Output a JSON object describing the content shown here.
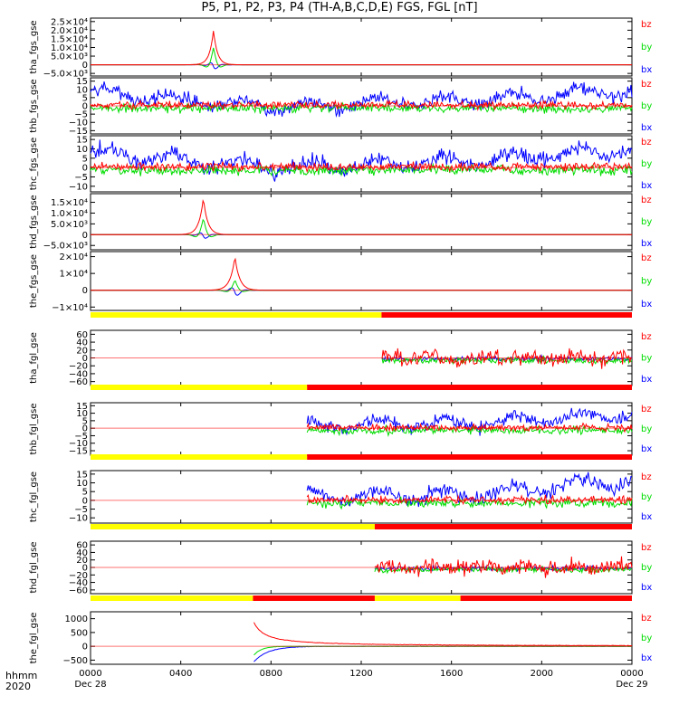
{
  "title": "P5, P1, P2, P3, P4 (TH-A,B,C,D,E) FGS, FGL [nT]",
  "corner_labels": [
    "hhmm",
    "2020"
  ],
  "colors": {
    "bx": "#0000ff",
    "by": "#00dd00",
    "bz": "#ff0000",
    "flag_on": "#ff0000",
    "flag_off": "#ffff00"
  },
  "chart_data": {
    "type": "line",
    "x_axis": {
      "range_hours": [
        0,
        24
      ],
      "tick_hours": [
        0,
        4,
        8,
        12,
        16,
        20,
        24
      ],
      "tick_labels": [
        "0000",
        "0400",
        "0800",
        "1200",
        "1600",
        "2000",
        "0000"
      ],
      "date_labels": [
        {
          "hour": 0,
          "text": "Dec 28"
        },
        {
          "hour": 24,
          "text": "Dec 29"
        }
      ]
    },
    "series_names": [
      "bz",
      "by",
      "bx"
    ],
    "panels": [
      {
        "ylabel": "tha_fgs_gse",
        "ylim": [
          -6500,
          27000
        ],
        "ticks": [
          25000,
          20000,
          15000,
          10000,
          5000,
          0,
          -5000
        ],
        "tick_labels": [
          "2.5×10⁴",
          "2.0×10⁴",
          "1.5×10⁴",
          "1.0×10⁴",
          "5.0×10³",
          "0",
          "−5.0×10³"
        ],
        "kind": "spike",
        "spike": {
          "center_h": 5.45,
          "width_h": 0.38,
          "bz": 20000,
          "by": 10000,
          "bx": -3500
        }
      },
      {
        "ylabel": "thb_fgs_gse",
        "ylim": [
          -17,
          17
        ],
        "ticks": [
          15,
          10,
          5,
          0,
          -5,
          -10,
          -15
        ],
        "tick_labels": [
          "15",
          "10",
          "5",
          "0",
          "−5",
          "−10",
          "−15"
        ],
        "kind": "noise",
        "start_h": 0,
        "bx_trend": [
          8,
          0,
          3,
          9
        ]
      },
      {
        "ylabel": "thc_fgs_gse",
        "ylim": [
          -13,
          17
        ],
        "ticks": [
          15,
          10,
          5,
          0,
          -5,
          -10
        ],
        "tick_labels": [
          "15",
          "10",
          "5",
          "0",
          "−5",
          "−10"
        ],
        "kind": "noise",
        "start_h": 0,
        "bx_trend": [
          8,
          0,
          3,
          10
        ]
      },
      {
        "ylabel": "thd_fgs_gse",
        "ylim": [
          -7000,
          19000
        ],
        "ticks": [
          15000,
          10000,
          5000,
          0,
          -5000
        ],
        "tick_labels": [
          "1.5×10⁴",
          "1.0×10⁴",
          "5.0×10³",
          "0",
          "−5.0×10³"
        ],
        "kind": "spike",
        "spike": {
          "center_h": 5.0,
          "width_h": 0.42,
          "bz": 17000,
          "by": 7500,
          "bx": -2500
        }
      },
      {
        "ylabel": "the_fgs_gse",
        "ylim": [
          -12000,
          23000
        ],
        "ticks": [
          20000,
          10000,
          0,
          -10000
        ],
        "tick_labels": [
          "2×10⁴",
          "1×10⁴",
          "0",
          "−1×10⁴"
        ],
        "kind": "spike",
        "spike": {
          "center_h": 6.4,
          "width_h": 0.45,
          "bz": 20000,
          "by": 6000,
          "bx": -4500
        }
      },
      {
        "ylabel": "tha_fgl_gse",
        "ylim": [
          -70,
          70
        ],
        "ticks": [
          60,
          40,
          20,
          0,
          -20,
          -40,
          -60
        ],
        "tick_labels": [
          "60",
          "40",
          "20",
          "0",
          "−20",
          "−40",
          "−60"
        ],
        "kind": "noise",
        "start_h": 12.9,
        "amp": 40,
        "flags": [
          {
            "from_h": 0,
            "to_h": 12.9,
            "on": false
          },
          {
            "from_h": 12.9,
            "to_h": 24,
            "on": true
          }
        ]
      },
      {
        "ylabel": "thb_fgl_gse",
        "ylim": [
          -18,
          17
        ],
        "ticks": [
          15,
          10,
          5,
          0,
          -5,
          -10,
          -15
        ],
        "tick_labels": [
          "15",
          "10",
          "5",
          "0",
          "−5",
          "−10",
          "−15"
        ],
        "kind": "noise",
        "start_h": 9.6,
        "bx_trend": [
          2,
          3,
          10
        ],
        "flags": [
          {
            "from_h": 0,
            "to_h": 9.6,
            "on": false
          },
          {
            "from_h": 9.6,
            "to_h": 24,
            "on": true
          }
        ]
      },
      {
        "ylabel": "thc_fgl_gse",
        "ylim": [
          -13,
          17
        ],
        "ticks": [
          15,
          10,
          5,
          0,
          -5,
          -10
        ],
        "tick_labels": [
          "15",
          "10",
          "5",
          "0",
          "−5",
          "−10"
        ],
        "kind": "noise",
        "start_h": 9.6,
        "bx_trend": [
          2,
          3,
          12
        ],
        "flags": [
          {
            "from_h": 0,
            "to_h": 9.6,
            "on": false
          },
          {
            "from_h": 9.6,
            "to_h": 24,
            "on": true
          }
        ]
      },
      {
        "ylabel": "thd_fgl_gse",
        "ylim": [
          -70,
          70
        ],
        "ticks": [
          60,
          40,
          20,
          0,
          -20,
          -40,
          -60
        ],
        "tick_labels": [
          "60",
          "40",
          "20",
          "0",
          "−20",
          "−40",
          "−60"
        ],
        "kind": "noise",
        "start_h": 12.6,
        "amp": 40,
        "flags": [
          {
            "from_h": 0,
            "to_h": 12.6,
            "on": false
          },
          {
            "from_h": 12.6,
            "to_h": 24,
            "on": true
          }
        ]
      },
      {
        "ylabel": "the_fgl_gse",
        "ylim": [
          -650,
          1250
        ],
        "ticks": [
          1000,
          500,
          0,
          -500
        ],
        "tick_labels": [
          "1000",
          "500",
          "0",
          "−500"
        ],
        "kind": "decay",
        "start_h": 7.2,
        "bz0": 950,
        "bx0": -600,
        "flags": [
          {
            "from_h": 0,
            "to_h": 7.2,
            "on": false
          },
          {
            "from_h": 7.2,
            "to_h": 12.6,
            "on": true
          },
          {
            "from_h": 12.6,
            "to_h": 16.4,
            "on": false
          },
          {
            "from_h": 16.4,
            "to_h": 24,
            "on": true
          }
        ]
      }
    ]
  }
}
